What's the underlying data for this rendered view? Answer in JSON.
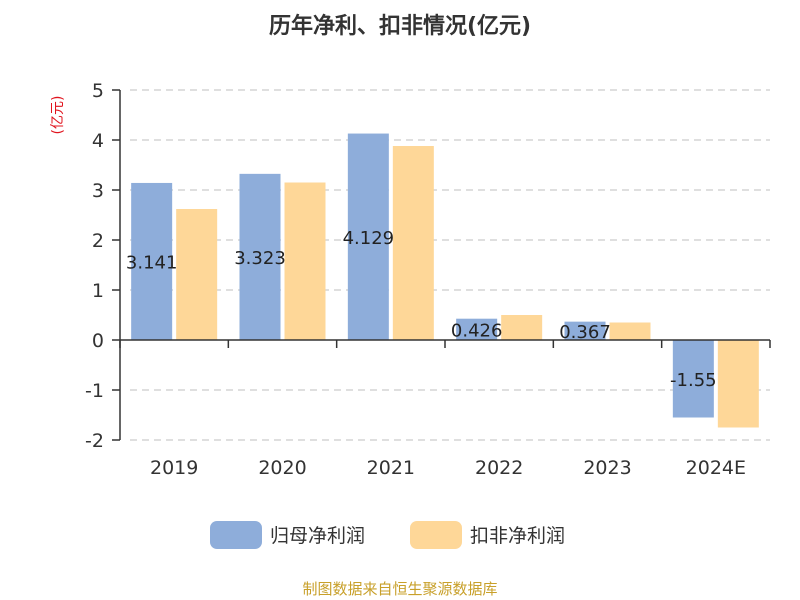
{
  "colors": {
    "series1": "#8eadda",
    "series2": "#fed798",
    "unit": "#e0141e",
    "source": "#c8a02a",
    "grid": "#cccccc",
    "axis": "#333333"
  },
  "chart_data": {
    "type": "bar",
    "title": "历年净利、扣非情况(亿元)",
    "ylabel": "(亿元)",
    "categories": [
      "2019",
      "2020",
      "2021",
      "2022",
      "2023",
      "2024E"
    ],
    "ylim": [
      -2,
      5
    ],
    "yticks": [
      "5",
      "4",
      "3",
      "2",
      "1",
      "0",
      "-1",
      "-2"
    ],
    "grid": "dashed horizontal",
    "legend_position": "bottom-center",
    "series": [
      {
        "name": "归母净利润",
        "values": [
          3.141,
          3.323,
          4.129,
          0.426,
          0.367,
          -1.55
        ],
        "labels": [
          "3.141",
          "3.323",
          "4.129",
          "0.426",
          "0.367",
          "-1.55"
        ]
      },
      {
        "name": "扣非净利润",
        "values": [
          2.62,
          3.15,
          3.88,
          0.5,
          0.35,
          -1.75
        ]
      }
    ],
    "source": "制图数据来自恒生聚源数据库"
  }
}
